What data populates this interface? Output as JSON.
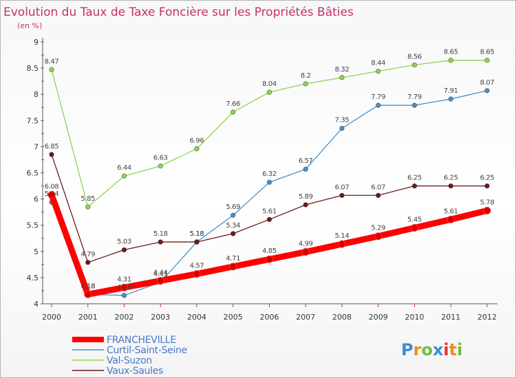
{
  "chart_data": {
    "type": "line",
    "title": "Evolution du Taux de Taxe Foncière sur les Propriétés Bâties",
    "subtitle": "(en %)",
    "xlabel": "",
    "ylabel": "",
    "x": [
      "2000",
      "2001",
      "2002",
      "2003",
      "2004",
      "2005",
      "2006",
      "2007",
      "2008",
      "2009",
      "2010",
      "2011",
      "2012"
    ],
    "ylim": [
      4,
      9
    ],
    "yticks": [
      "4",
      "4.5",
      "5",
      "5.5",
      "6",
      "6.5",
      "7",
      "7.5",
      "8",
      "8.5",
      "9"
    ],
    "grid": false,
    "legend_position": "bottom-left",
    "series": [
      {
        "name": "Val-Suzon",
        "color": "#8ed453",
        "values": [
          8.47,
          5.85,
          6.44,
          6.63,
          6.96,
          7.66,
          8.04,
          8.2,
          8.32,
          8.44,
          8.56,
          8.65,
          8.65
        ],
        "labels": [
          "8.47",
          "5.85",
          "6.44",
          "6.63",
          "6.96",
          "7.66",
          "8.04",
          "8.2",
          "8.32",
          "8.44",
          "8.56",
          "8.65",
          "8.65"
        ]
      },
      {
        "name": "Curtil-Saint-Seine",
        "color": "#4a90c8",
        "values": [
          5.94,
          4.18,
          4.16,
          4.41,
          5.18,
          5.69,
          6.32,
          6.57,
          7.35,
          7.79,
          7.79,
          7.91,
          8.07
        ],
        "labels": [
          "5.94",
          "4.18",
          "4.16",
          "4.41",
          "5.18",
          "5.69",
          "6.32",
          "6.57",
          "7.35",
          "7.79",
          "7.79",
          "7.91",
          "8.07"
        ]
      },
      {
        "name": "Vaux-Saules",
        "color": "#6b1a1a",
        "values": [
          6.85,
          4.79,
          5.03,
          5.18,
          5.18,
          5.34,
          5.61,
          5.89,
          6.07,
          6.07,
          6.25,
          6.25,
          6.25
        ],
        "labels": [
          "6.85",
          "4.79",
          "5.03",
          "5.18",
          "5.18",
          "5.34",
          "5.61",
          "5.89",
          "6.07",
          "6.07",
          "6.25",
          "6.25",
          "6.25"
        ]
      },
      {
        "name": "FRANCHEVILLE",
        "color": "#ff0000",
        "values": [
          6.08,
          4.18,
          4.31,
          4.44,
          4.57,
          4.71,
          4.85,
          4.99,
          5.14,
          5.29,
          5.45,
          5.61,
          5.78
        ],
        "labels": [
          "6.08",
          "4.18",
          "4.31",
          "4.44",
          "4.57",
          "4.71",
          "4.85",
          "4.99",
          "5.14",
          "5.29",
          "5.45",
          "5.61",
          "5.78"
        ]
      }
    ],
    "legend": [
      "FRANCHEVILLE",
      "Curtil-Saint-Seine",
      "Val-Suzon",
      "Vaux-Saules"
    ]
  },
  "logo": {
    "letters": [
      "P",
      "r",
      "o",
      "x",
      "i",
      "t",
      "i"
    ],
    "colors": [
      "#3d8fd6",
      "#f08a1c",
      "#6fbf3b",
      "#3d8fd6",
      "#e8312f",
      "#f08a1c",
      "#6fbf3b"
    ]
  }
}
